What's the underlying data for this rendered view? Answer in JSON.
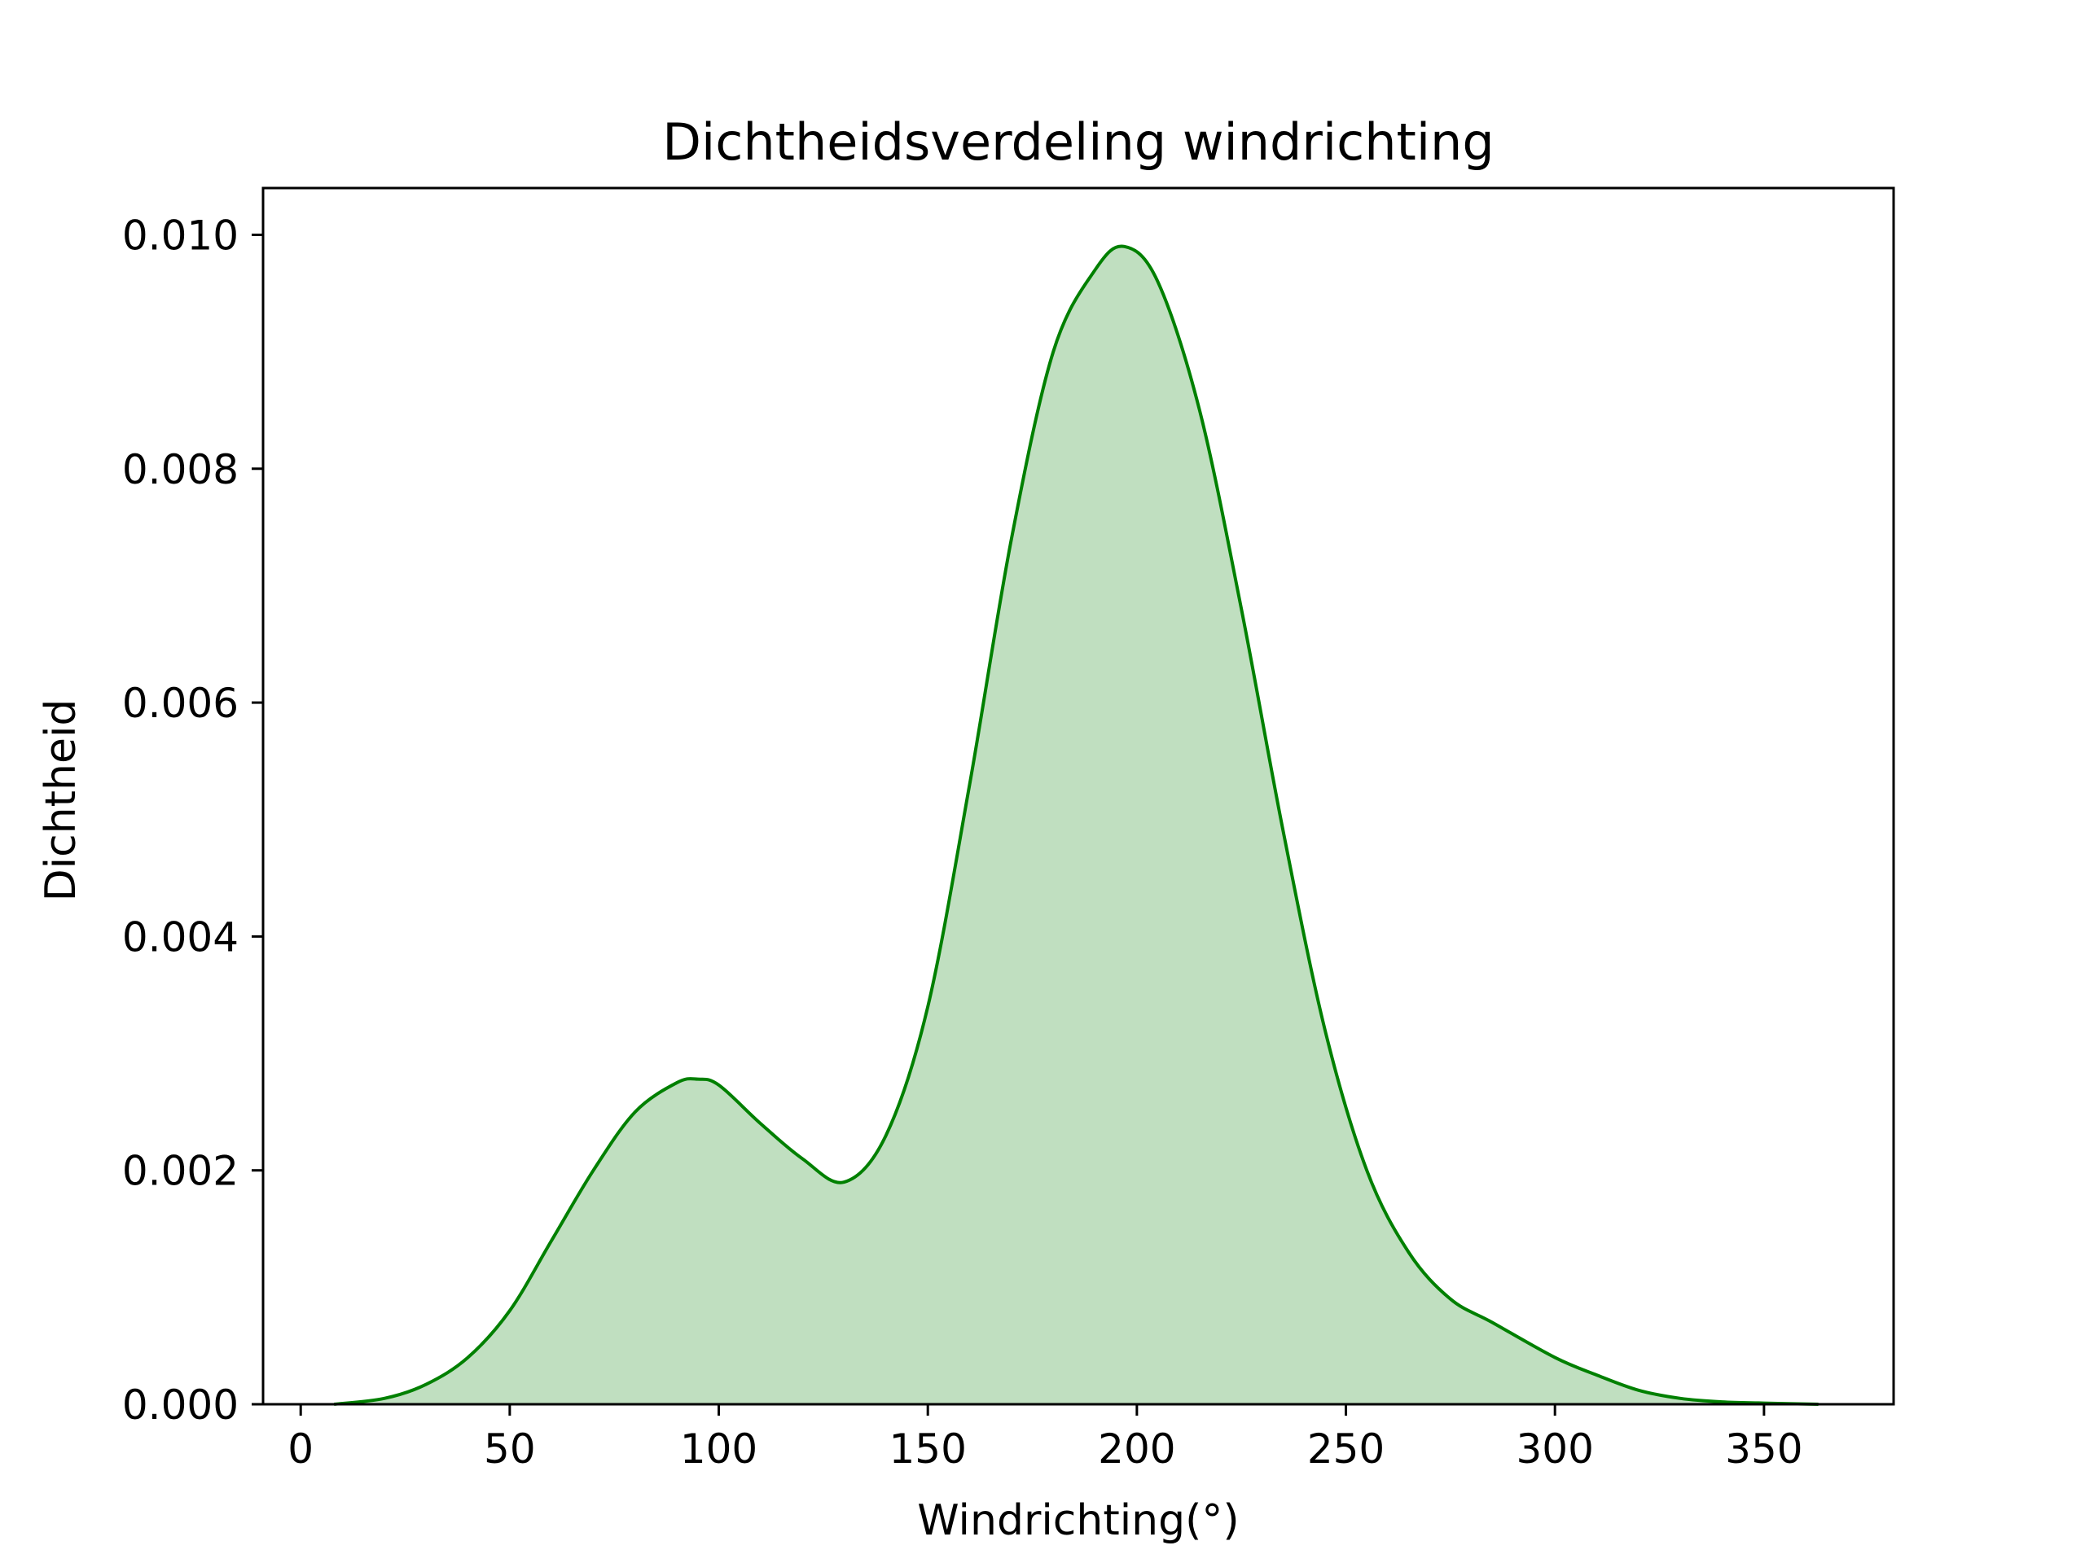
{
  "chart_data": {
    "type": "area",
    "title": "Dichtheidsverdeling windrichting",
    "xlabel": "Windrichting(°)",
    "ylabel": "Dichtheid",
    "xlim": [
      -9,
      381
    ],
    "ylim": [
      0,
      0.0104
    ],
    "xticks": [
      0,
      50,
      100,
      150,
      200,
      250,
      300,
      350
    ],
    "yticks": [
      0.0,
      0.002,
      0.004,
      0.006,
      0.008,
      0.01
    ],
    "ytick_labels": [
      "0.000",
      "0.002",
      "0.004",
      "0.006",
      "0.008",
      "0.010"
    ],
    "grid": false,
    "line_color": "#008000",
    "fill_color": "#c0dfc0",
    "x": [
      8,
      20,
      30,
      40,
      50,
      60,
      70,
      80,
      90,
      95,
      100,
      110,
      120,
      130,
      140,
      150,
      160,
      170,
      180,
      190,
      197,
      205,
      215,
      225,
      235,
      245,
      255,
      265,
      275,
      285,
      300,
      310,
      320,
      330,
      340,
      350,
      363
    ],
    "y": [
      0.0,
      5e-05,
      0.00017,
      0.0004,
      0.0008,
      0.0014,
      0.002,
      0.0025,
      0.00275,
      0.00278,
      0.00273,
      0.0024,
      0.0021,
      0.0019,
      0.0023,
      0.0034,
      0.0053,
      0.0074,
      0.009,
      0.0097,
      0.0099,
      0.0096,
      0.0085,
      0.0068,
      0.0049,
      0.0032,
      0.002,
      0.0013,
      0.0009,
      0.0007,
      0.0004,
      0.00025,
      0.00012,
      5e-05,
      2e-05,
      1e-05,
      0.0
    ]
  }
}
